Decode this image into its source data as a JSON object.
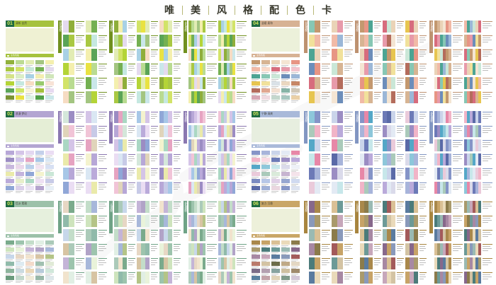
{
  "title": {
    "text": "唯美风格配色卡",
    "chars": [
      "唯",
      "美",
      "风",
      "格",
      "配",
      "色",
      "卡"
    ]
  },
  "sections": {
    "primary": "主色色板",
    "pair": "双色搭配",
    "tri": "三色搭配",
    "multi": "多色搭配"
  },
  "badge": {
    "bg": "#1f6b43",
    "fg": "#d2e45a"
  },
  "accent_separator": "#b8b878",
  "combo_patterns": {
    "pairs": [
      [
        9,
        0
      ],
      [
        13,
        5
      ],
      [
        8,
        2
      ],
      [
        10,
        4
      ],
      [
        6,
        1
      ],
      [
        12,
        3
      ],
      [
        2,
        7
      ],
      [
        5,
        11
      ],
      [
        4,
        13
      ],
      [
        14,
        1
      ],
      [
        7,
        15
      ],
      [
        3,
        10
      ]
    ],
    "tris": [
      [
        0,
        4,
        8
      ],
      [
        1,
        5,
        9
      ],
      [
        2,
        6,
        10
      ],
      [
        3,
        7,
        11
      ],
      [
        4,
        12,
        0
      ],
      [
        5,
        13,
        1
      ],
      [
        6,
        14,
        2
      ],
      [
        7,
        15,
        3
      ],
      [
        8,
        0,
        12
      ],
      [
        9,
        1,
        13
      ],
      [
        10,
        2,
        14
      ],
      [
        11,
        3,
        15
      ],
      [
        12,
        6,
        2
      ],
      [
        13,
        7,
        5
      ],
      [
        14,
        8,
        4
      ],
      [
        15,
        9,
        1
      ],
      [
        0,
        10,
        5
      ],
      [
        1,
        11,
        6
      ]
    ],
    "multis": [
      [
        0,
        1,
        2,
        3,
        4,
        5
      ],
      [
        6,
        7,
        8,
        9,
        10,
        11
      ],
      [
        12,
        13,
        14,
        15,
        0,
        1
      ],
      [
        2,
        5,
        8,
        11,
        14,
        1
      ],
      [
        3,
        6,
        9,
        12,
        15,
        0
      ],
      [
        4,
        7,
        10,
        13,
        0,
        3
      ],
      [
        5,
        8,
        11,
        14,
        2,
        6
      ],
      [
        1,
        4,
        7,
        10,
        13,
        0
      ],
      [
        6,
        9,
        0,
        3,
        12,
        15
      ],
      [
        7,
        2,
        13,
        8,
        3,
        14
      ],
      [
        8,
        1,
        10,
        3,
        12,
        5
      ],
      [
        9,
        4,
        15,
        6,
        1,
        12
      ]
    ]
  },
  "panels": [
    {
      "number": "01",
      "title": "清新·自然",
      "theme": "#a6c23e",
      "theme_dark": "#71901f",
      "big_swatch": "#eff1d3",
      "palette": [
        "#8fae3a",
        "#b9db91",
        "#e2ecb4",
        "#a3c581",
        "#f4efae",
        "#a9c843",
        "#d2e368",
        "#74b052",
        "#a8d1e5",
        "#e4daee",
        "#b4d437",
        "#c5e8e0",
        "#f6dcc3",
        "#5aa457",
        "#e9e242",
        "#cae7ea"
      ],
      "grid": [
        "#91b13c",
        "#bcdb93",
        "#e2ecb4",
        "#a3c581",
        "#f4efae",
        "#a9c843",
        "#d2e368",
        "#c8e8da",
        "#74b052",
        "#e4daee",
        "#d5e388",
        "#dbeec6",
        "#a8d1e5",
        "#f3eeb0",
        "#d0e6ba",
        "#b4d437",
        "#c5e8e0",
        "#f6dcc3",
        "#98ca6d",
        "#f8e3d7",
        "#5aa457",
        "#cee768",
        "#f8f3da",
        "#a4c03c",
        "#e7daf1",
        "#7b9334",
        "#e9e242",
        "#dbf1e3",
        "#52a048",
        "#cae7ea"
      ]
    },
    {
      "number": "02",
      "title": "浪漫·梦幻",
      "theme": "#b3a5d2",
      "theme_dark": "#8a77b0",
      "big_swatch": "#e5eed6",
      "palette": [
        "#9b8cc3",
        "#b7a7d7",
        "#d4c4e7",
        "#eaddf3",
        "#e6a3c1",
        "#f1c4d7",
        "#a7c7e7",
        "#dae7f3",
        "#aad7c3",
        "#d4e7da",
        "#eaeaaa",
        "#c7cae7",
        "#90a7d7",
        "#e0d4ba",
        "#f4f3ce",
        "#baaada"
      ],
      "grid": [
        "#b7a7d7",
        "#d4c4e7",
        "#e3d7f0",
        "#c4d0ea",
        "#eaddf3",
        "#9b8cc3",
        "#d0c4ea",
        "#e6a3c1",
        "#a7c7e7",
        "#dae7f3",
        "#c7b7dd",
        "#ead7ea",
        "#bad0ea",
        "#f1e3f0",
        "#d7e0f3",
        "#eaeaaa",
        "#c4b4dd",
        "#90a7d7",
        "#f4f3ce",
        "#cae7d7",
        "#baaada",
        "#e7efca",
        "#aad7c3",
        "#eee0f3",
        "#c7cae7",
        "#8fa6d6",
        "#dacfea",
        "#eae3f4",
        "#b4a3cd",
        "#e7eff7"
      ]
    },
    {
      "number": "03",
      "title": "恬淡·素雅",
      "theme": "#9cc1a9",
      "theme_dark": "#6fa386",
      "big_swatch": "#e6f0dd",
      "palette": [
        "#7aaa8c",
        "#9dc4ad",
        "#c3ddc9",
        "#e1efe4",
        "#abcab9",
        "#cee4bd",
        "#c4b4d7",
        "#a7b7da",
        "#c7d7ea",
        "#e7d7c4",
        "#d7c4a3",
        "#b4c487",
        "#f1e3cd",
        "#90baaa",
        "#b1a3c7",
        "#e9f3da"
      ],
      "grid": [
        "#7aaa8c",
        "#9dc4ad",
        "#c3ddc9",
        "#e1efe4",
        "#abcab9",
        "#cee4bd",
        "#e9f3da",
        "#c4b4d7",
        "#b1a3c7",
        "#a7b7da",
        "#c7d7ea",
        "#e7d7c4",
        "#f1e3cd",
        "#d7c4a3",
        "#b4c487",
        "#90baaa",
        "#ddeaf1",
        "#f3daca",
        "#a0c0b0",
        "#e0ead7",
        "#8cb49c",
        "#cadae0",
        "#ead7b7",
        "#b7cada",
        "#d0e7da",
        "#6a9a7c",
        "#c0d7ca",
        "#f0ead7",
        "#97b7a7",
        "#dde7ea"
      ]
    },
    {
      "number": "04",
      "title": "温暖·柔和",
      "theme": "#d7b294",
      "theme_dark": "#bd9270",
      "big_swatch": "#ecf1da",
      "palette": [
        "#c3986f",
        "#d7b493",
        "#ead3b7",
        "#f4e5d3",
        "#e79584",
        "#f1baa7",
        "#d76c7d",
        "#e79aaa",
        "#4ca493",
        "#87c7b4",
        "#6c8dba",
        "#9bb7d7",
        "#e7c550",
        "#f1e19b",
        "#cae7d7",
        "#b46c5c"
      ],
      "grid": [
        "#c3986f",
        "#d7b493",
        "#ead3b7",
        "#f4e5d3",
        "#e79584",
        "#f1baa7",
        "#fadaca",
        "#d76c7d",
        "#e79aaa",
        "#f3c4cd",
        "#4ca493",
        "#87c7b4",
        "#cae7d7",
        "#6c8dba",
        "#9bb7d7",
        "#e7c550",
        "#f1e19b",
        "#dae1e7",
        "#ead7c0",
        "#c78767",
        "#b46c5c",
        "#e0a790",
        "#f3dfd0",
        "#87b4a7",
        "#d0c7b7",
        "#d7a7b4",
        "#f0dae0",
        "#c4d7cd",
        "#a7c7c0",
        "#ead0a7"
      ]
    },
    {
      "number": "05",
      "title": "宁静·清爽",
      "theme": "#a9b9d9",
      "theme_dark": "#8296c2",
      "big_swatch": "#e7eedf",
      "palette": [
        "#8594c7",
        "#a7b4da",
        "#cad4ea",
        "#e3eaf4",
        "#e787a7",
        "#f1b4c7",
        "#6c7ab7",
        "#9b8dc3",
        "#54a7c7",
        "#8dc7da",
        "#c7e7ea",
        "#baaada",
        "#eacada",
        "#aacaba",
        "#5a6aa7",
        "#dadaea"
      ],
      "grid": [
        "#8594c7",
        "#a7b4da",
        "#cad4ea",
        "#e3eaf4",
        "#e787a7",
        "#f1b4c7",
        "#fadae3",
        "#6c7ab7",
        "#9b8dc3",
        "#baaada",
        "#54a7c7",
        "#8dc7da",
        "#c7e7ea",
        "#dadaea",
        "#eef1f7",
        "#eacada",
        "#aacaba",
        "#daeada",
        "#c7b4d0",
        "#f4e3ea",
        "#7a8ac0",
        "#b7c7e7",
        "#e0d0e7",
        "#97a7d0",
        "#d0daf0",
        "#5a6aa7",
        "#a0b0d7",
        "#ead7e0",
        "#8797c7",
        "#dde3f0"
      ]
    },
    {
      "number": "06",
      "title": "复古·沉稳",
      "theme": "#c9a667",
      "theme_dark": "#a8853f",
      "big_swatch": "#edf0da",
      "palette": [
        "#a9884b",
        "#c7a367",
        "#dac095",
        "#eadaba",
        "#8b7b4b",
        "#a99a6c",
        "#4b7b7a",
        "#6c9a97",
        "#9abab3",
        "#87688b",
        "#a788a3",
        "#c7a7ba",
        "#5a7b9f",
        "#8999ba",
        "#a35a5a",
        "#d3c3a3"
      ],
      "grid": [
        "#a9884b",
        "#c7a367",
        "#dac095",
        "#eadaba",
        "#8b7b4b",
        "#a99a6c",
        "#4b7b7a",
        "#6c9a97",
        "#9abab3",
        "#87688b",
        "#a788a3",
        "#c7a7ba",
        "#5a7b9f",
        "#8999ba",
        "#a35a5a",
        "#ba7a6c",
        "#d3c3a3",
        "#6c6c4a",
        "#bfa987",
        "#e3d7c3",
        "#7b6c87",
        "#b4a0b0",
        "#87a3a0",
        "#cdbfa0",
        "#9f8a6c",
        "#59809f",
        "#c3a3a9",
        "#e0d3b7",
        "#7f9a8a",
        "#d3c7d7"
      ]
    }
  ]
}
